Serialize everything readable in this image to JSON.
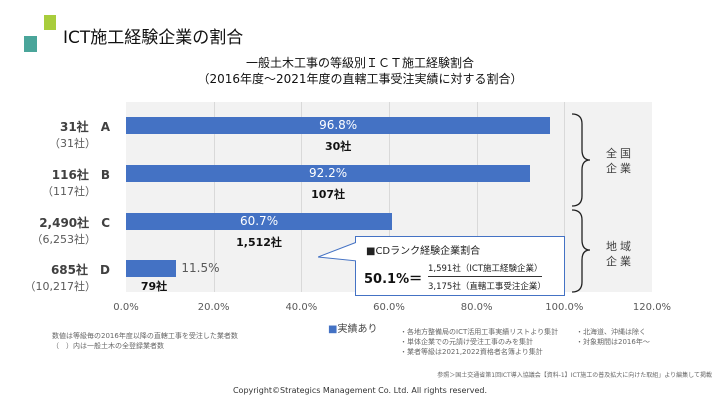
{
  "header": {
    "title": "ICT施工経験企業の割合"
  },
  "chart_data": {
    "type": "bar",
    "orientation": "horizontal",
    "title": "一般土木工事の等級別ＩＣＴ施工経験割合",
    "subtitle": "（2016年度～2021年度の直轄工事受注実績に対する割合）",
    "categories": [
      "A",
      "B",
      "C",
      "D"
    ],
    "category_totals": [
      "31社",
      "116社",
      "2,490社",
      "685社"
    ],
    "category_registered": [
      "（31社）",
      "（117社）",
      "（6,253社）",
      "（10,217社）"
    ],
    "series": [
      {
        "name": "実績あり",
        "values": [
          96.8,
          92.2,
          60.7,
          11.5
        ],
        "labels": [
          "96.8%",
          "92.2%",
          "60.7%",
          "11.5%"
        ],
        "counts": [
          "30社",
          "107社",
          "1,512社",
          "79社"
        ],
        "color": "#4472c4"
      }
    ],
    "xlim": [
      0,
      120
    ],
    "xticks": [
      "0.0%",
      "20.0%",
      "40.0%",
      "60.0%",
      "80.0%",
      "100.0%",
      "120.0%"
    ],
    "grid": true,
    "legend": "bottom",
    "groups": [
      {
        "line1": "全国",
        "line2": "企業"
      },
      {
        "line1": "地域",
        "line2": "企業"
      }
    ],
    "annotation": {
      "heading": "■CDランク経験企業割合",
      "value": "50.1%＝",
      "numerator": "1,591社（ICT施工経験企業）",
      "denominator": "3,175社（直轄工事受注企業）"
    }
  },
  "notes": {
    "left1": "数値は等級毎の2016年度以降の直轄工事を受注した業者数",
    "left2": "（　）内は一般土木の全登録業者数",
    "mid1": "・各地方整備局のICT活用工事実績リストより集計",
    "mid2": "・単体企業での元請け受注工事のみを集計",
    "mid3": "・業者等級は2021,2022資格者名簿より集計",
    "right1": "・北海道、沖縄は除く",
    "right2": "・対象期間は2016年～",
    "source": "参照＞国土交通省第1回ICT導入協議会【資料-1】ICT施工の普及拡大に向けた取組」より編集して掲載",
    "copyright": "Copyright©Strategics Management Co. Ltd. All rights reserved."
  }
}
